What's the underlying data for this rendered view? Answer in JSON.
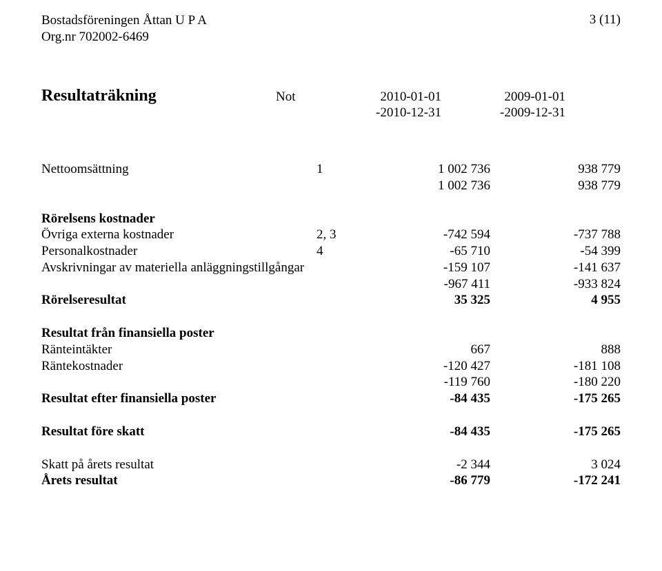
{
  "header": {
    "org_name": "Bostadsföreningen Åttan U P A",
    "org_nr": "Org.nr 702002-6469",
    "page_indicator": "3 (11)"
  },
  "title": "Resultaträkning",
  "columns": {
    "note_label": "Not",
    "period1_line1": "2010-01-01",
    "period1_line2": "-2010-12-31",
    "period2_line1": "2009-01-01",
    "period2_line2": "-2009-12-31"
  },
  "rows": {
    "netto": {
      "label": "Nettoomsättning",
      "note": "1",
      "c1": "1 002 736",
      "c2": "938 779"
    },
    "netto_sum": {
      "c1": "1 002 736",
      "c2": "938 779"
    },
    "rorelsens_kostnader_hdr": "Rörelsens kostnader",
    "ovriga_externa": {
      "label": "Övriga externa kostnader",
      "note": "2, 3",
      "c1": "-742 594",
      "c2": "-737 788"
    },
    "personal": {
      "label": "Personalkostnader",
      "note": "4",
      "c1": "-65 710",
      "c2": "-54 399"
    },
    "avskr": {
      "label": "Avskrivningar av materiella anläggningstillgångar",
      "c1": "-159 107",
      "c2": "-141 637"
    },
    "kostn_sum": {
      "c1": "-967 411",
      "c2": "-933 824"
    },
    "rorelseresultat": {
      "label": "Rörelseresultat",
      "c1": "35 325",
      "c2": "4 955"
    },
    "fin_hdr": "Resultat från finansiella poster",
    "ranteintakter": {
      "label": "Ränteintäkter",
      "c1": "667",
      "c2": "888"
    },
    "rantekostnader": {
      "label": "Räntekostnader",
      "c1": "-120 427",
      "c2": "-181 108"
    },
    "fin_sum": {
      "c1": "-119 760",
      "c2": "-180 220"
    },
    "res_efter_fin": {
      "label": "Resultat efter finansiella poster",
      "c1": "-84 435",
      "c2": "-175 265"
    },
    "res_fore_skatt": {
      "label": "Resultat före skatt",
      "c1": "-84 435",
      "c2": "-175 265"
    },
    "skatt": {
      "label": "Skatt på årets resultat",
      "c1": "-2 344",
      "c2": "3 024"
    },
    "arets_resultat": {
      "label": "Årets resultat",
      "c1": "-86 779",
      "c2": "-172 241"
    }
  }
}
